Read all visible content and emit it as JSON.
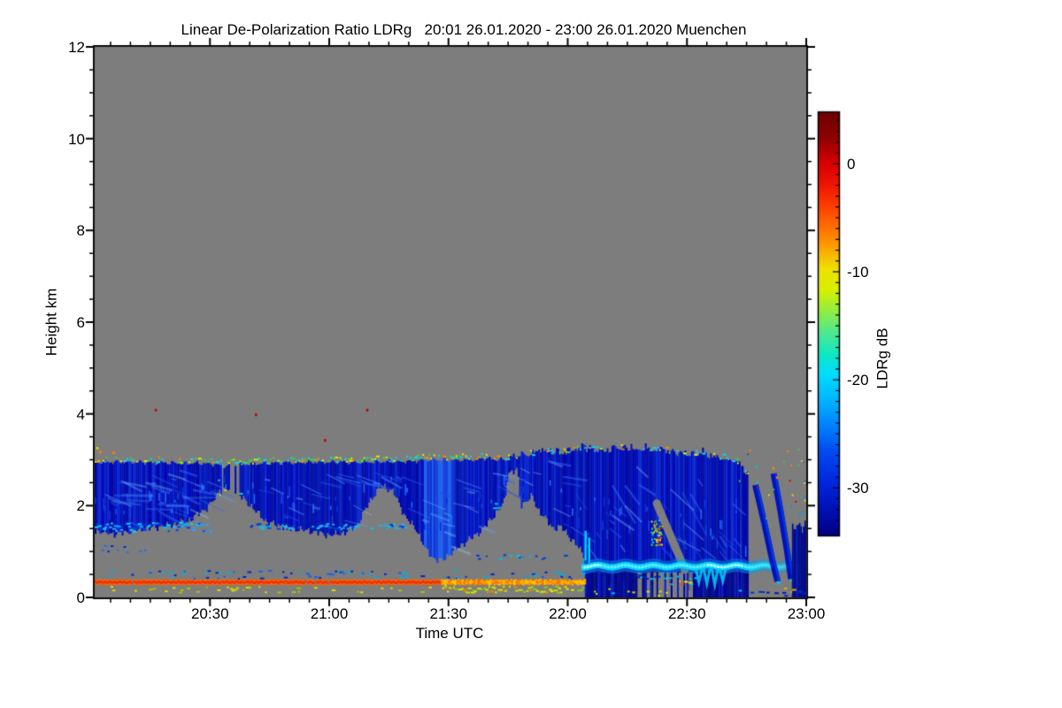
{
  "figure": {
    "title": "Linear De-Polarization Ratio LDRg   20:01 26.01.2020 - 23:00 26.01.2020 Muenchen"
  },
  "chart_data": {
    "type": "heatmap",
    "title": "Linear De-Polarization Ratio LDRg   20:01 26.01.2020 - 23:00 26.01.2020 Muenchen",
    "station": "Muenchen",
    "time_span": "20:01 26.01.2020 - 23:00 26.01.2020",
    "xlabel": "Time UTC",
    "ylabel": "Height km",
    "x_start_min": 1,
    "x_end_min": 180,
    "x_major_ticks": [
      {
        "t": 30,
        "label": "20:30"
      },
      {
        "t": 60,
        "label": "21:00"
      },
      {
        "t": 90,
        "label": "21:30"
      },
      {
        "t": 120,
        "label": "22:00"
      },
      {
        "t": 150,
        "label": "22:30"
      },
      {
        "t": 180,
        "label": "23:00"
      }
    ],
    "x_minor_step_min": 5,
    "ylim": [
      0,
      12
    ],
    "y_major_ticks": [
      0,
      2,
      4,
      6,
      8,
      10,
      12
    ],
    "y_minor_step_km": 0.5,
    "grid": false,
    "no_signal_color": "#7d7d7d",
    "colorbar": {
      "label": "LDRg dB",
      "tick_labels": [
        "0",
        "-10",
        "-20",
        "-30"
      ],
      "tick_values": [
        0,
        -10,
        -20,
        -30
      ],
      "value_range": [
        -34.4,
        4.75
      ],
      "minor_step_db": 1,
      "gradient": [
        [
          0,
          "#6f0000"
        ],
        [
          0.06,
          "#8f0000"
        ],
        [
          0.12,
          "#d80000"
        ],
        [
          0.17,
          "#f01400"
        ],
        [
          0.22,
          "#ff3c00"
        ],
        [
          0.27,
          "#ff6e00"
        ],
        [
          0.31,
          "#ff9600"
        ],
        [
          0.37,
          "#f0e000"
        ],
        [
          0.42,
          "#d8f000"
        ],
        [
          0.47,
          "#90ee40"
        ],
        [
          0.52,
          "#50e890"
        ],
        [
          0.57,
          "#10e8c0"
        ],
        [
          0.62,
          "#00dcff"
        ],
        [
          0.68,
          "#00b4ff"
        ],
        [
          0.74,
          "#0082ff"
        ],
        [
          0.8,
          "#004cf0"
        ],
        [
          0.87,
          "#0028e0"
        ],
        [
          0.93,
          "#0014bc"
        ],
        [
          1,
          "#000082"
        ]
      ]
    },
    "features": {
      "cloud_layer": {
        "note": "stratiform mixed-phase cloud deck, LDR ~ -30 dB (dark blue)",
        "top_points": [
          [
            1,
            2.95
          ],
          [
            10,
            2.95
          ],
          [
            20,
            2.93
          ],
          [
            28,
            2.92
          ],
          [
            31,
            2.9
          ],
          [
            33,
            2.86
          ],
          [
            38,
            2.9
          ],
          [
            50,
            2.94
          ],
          [
            60,
            2.95
          ],
          [
            70,
            2.95
          ],
          [
            80,
            2.97
          ],
          [
            85,
            3.0
          ],
          [
            90,
            3.0
          ],
          [
            95,
            3.0
          ],
          [
            99,
            3.03
          ],
          [
            102,
            3.0
          ],
          [
            105,
            3.0
          ],
          [
            107,
            3.03
          ],
          [
            110,
            3.08
          ],
          [
            113,
            3.14
          ],
          [
            118,
            3.12
          ],
          [
            122,
            3.16
          ],
          [
            126,
            3.18
          ],
          [
            130,
            3.17
          ],
          [
            134,
            3.22
          ],
          [
            138,
            3.15
          ],
          [
            142,
            3.18
          ],
          [
            146,
            3.14
          ],
          [
            150,
            3.1
          ],
          [
            154,
            3.06
          ],
          [
            158,
            3.02
          ],
          [
            161,
            2.97
          ],
          [
            163,
            2.9
          ],
          [
            165.3,
            2.6
          ]
        ],
        "base_points": [
          [
            1,
            1.45
          ],
          [
            6,
            1.38
          ],
          [
            12,
            1.48
          ],
          [
            18,
            1.55
          ],
          [
            24,
            1.65
          ],
          [
            29,
            1.95
          ],
          [
            31.5,
            2.2
          ],
          [
            34,
            2.35
          ],
          [
            37,
            2.25
          ],
          [
            40,
            2.0
          ],
          [
            44,
            1.65
          ],
          [
            50,
            1.5
          ],
          [
            55,
            1.45
          ],
          [
            60,
            1.35
          ],
          [
            64,
            1.42
          ],
          [
            67,
            1.6
          ],
          [
            70,
            2.1
          ],
          [
            73,
            2.45
          ],
          [
            76,
            2.3
          ],
          [
            79,
            1.75
          ],
          [
            82,
            1.45
          ],
          [
            84,
            1.05
          ],
          [
            86,
            0.85
          ],
          [
            88,
            0.8
          ],
          [
            91,
            1.0
          ],
          [
            94,
            1.2
          ],
          [
            98,
            1.45
          ],
          [
            101,
            1.75
          ],
          [
            104,
            2.1
          ],
          [
            104.8,
            2.72
          ],
          [
            107.2,
            2.78
          ],
          [
            108,
            2.0
          ],
          [
            110,
            2.15
          ],
          [
            111,
            2.2
          ],
          [
            112,
            1.95
          ],
          [
            114,
            1.75
          ],
          [
            116,
            1.5
          ],
          [
            118,
            1.55
          ],
          [
            120,
            1.35
          ],
          [
            122,
            1.15
          ],
          [
            124,
            0.9
          ],
          [
            124.3,
            0.62
          ],
          [
            165.3,
            0.62
          ]
        ],
        "patchy_gap_t": [
          31.5,
          39
        ],
        "deep_light_t": [
          83.5,
          91.5
        ],
        "end_t": 165.3,
        "palette": [
          "#0007a8",
          "#000cc0",
          "#0a28d8",
          "#0316b2"
        ],
        "light_palette": [
          "#1440e0",
          "#1e64f0",
          "#0a30d8"
        ],
        "wisp_colors": [
          "rgba(45,110,245,0.50)",
          "rgba(90,170,255,0.42)",
          "rgba(25,80,230,0.50)",
          "rgba(140,220,255,0.33)"
        ]
      },
      "precipitation": {
        "note": "snow/drizzle below cloud after 22:05 reaching ground",
        "t": [
          124.3,
          165.3
        ],
        "top_km": 0.8,
        "hole_t": [
          137,
          152
        ],
        "hole_below_km": 0.55,
        "palette": [
          "#0000a0",
          "#000692",
          "#0a1cc8",
          "#000f86"
        ]
      },
      "bright_band": {
        "note": "strong cyan layer ~0.7 km, LDR ~ -20 dB",
        "t": [
          123.5,
          180
        ],
        "center_km": 0.68,
        "fade_after_t": 165.3,
        "bright_t": [
          155,
          164
        ],
        "virga_dips": [
          [
            153,
            0.33
          ],
          [
            155,
            0.3
          ],
          [
            157,
            0.28
          ],
          [
            159,
            0.35
          ]
        ],
        "segment2": {
          "t": [
            175.6,
            179.8
          ],
          "km": 0.5
        }
      },
      "gray_wedge": {
        "from": [
          142.4,
          2.05
        ],
        "to": [
          149.5,
          0.6
        ]
      },
      "depol_blob": {
        "t": [
          140.8,
          143.6
        ],
        "km": [
          1.15,
          1.7
        ],
        "colors": [
          "#ffd000",
          "#ff8000",
          "#e00000",
          "#60e000",
          "#00d0e0"
        ]
      },
      "onset_streaks": [
        [
          124.5,
          0.8,
          1.45
        ],
        [
          125.4,
          0.75,
          1.3
        ]
      ],
      "slant_streaks": [
        [
          [
            167.2,
            2.45
          ],
          [
            169.5,
            1.6
          ],
          [
            171.5,
            0.8
          ],
          [
            172.8,
            0.35
          ]
        ],
        [
          [
            171.8,
            2.7
          ],
          [
            173.5,
            1.9
          ],
          [
            175.2,
            1.0
          ],
          [
            176.2,
            0.4
          ]
        ]
      ],
      "right_patch": {
        "t": [
          176.4,
          180
        ],
        "top_km": 1.55
      },
      "surface_line": {
        "note": "aerosol layer ~0.33 km, LDR ~ -3 dB (red-orange)",
        "t": [
          1,
          124.5
        ],
        "km": 0.33,
        "orange_from_t": 88,
        "core_color": "#f02800",
        "edge_color": "#ff6a00",
        "late_colors": [
          "#ff8c00",
          "#ffb000",
          "#ff7000",
          "#ffd000"
        ]
      },
      "speckle_rows": [
        {
          "t": [
            1,
            14
          ],
          "km": [
            1.0,
            1.15
          ],
          "density": 0.3,
          "colors": [
            "#0030d0",
            "#2070f0"
          ]
        },
        {
          "t": [
            1,
            30
          ],
          "km": [
            1.45,
            1.65
          ],
          "density": 0.85,
          "colors": [
            "#00d8e8",
            "#30a0ff",
            "#0040e0",
            "#00b0ff"
          ]
        },
        {
          "t": [
            40,
            80
          ],
          "km": [
            1.5,
            1.62
          ],
          "density": 0.55,
          "colors": [
            "#20b0f0",
            "#0040e0",
            "#00c8e8"
          ]
        },
        {
          "t": [
            1,
            124
          ],
          "km": [
            0.42,
            0.62
          ],
          "density": 0.22,
          "colors": [
            "#0028c0",
            "#00b0e0",
            "#2060e8"
          ]
        },
        {
          "t": [
            95,
            122
          ],
          "km": [
            0.85,
            0.95
          ],
          "density": 0.3,
          "colors": [
            "#00c0e8",
            "#0040d0"
          ]
        },
        {
          "t": [
            1,
            88
          ],
          "km": [
            0.12,
            0.26
          ],
          "density": 0.18,
          "colors": [
            "#d8d800",
            "#a0c800"
          ]
        },
        {
          "t": [
            88,
            124
          ],
          "km": [
            0.12,
            0.26
          ],
          "density": 0.7,
          "colors": [
            "#e0e000",
            "#80d020",
            "#e09000",
            "#c8e000"
          ]
        },
        {
          "t": [
            125,
            165
          ],
          "km": [
            0.05,
            0.2
          ],
          "density": 0.1,
          "colors": [
            "#d8d800",
            "#00c0e0"
          ]
        },
        {
          "t": [
            137,
            152
          ],
          "km": [
            0.42,
            0.5
          ],
          "density": 0.45,
          "colors": [
            "#0020b0",
            "#00c0e0"
          ]
        },
        {
          "t": [
            146,
            151
          ],
          "km": [
            0.3,
            0.38
          ],
          "density": 0.6,
          "colors": [
            "#ff4000",
            "#ffa000",
            "#00d0e0",
            "#e8e800"
          ]
        },
        {
          "t": [
            32,
            39
          ],
          "km": [
            2.1,
            2.7
          ],
          "density": 0.25,
          "colors": [
            "#00d0d0",
            "#40c840",
            "#d8d800"
          ]
        },
        {
          "t": [
            100,
            104
          ],
          "km": [
            1.95,
            2.1
          ],
          "density": 0.3,
          "colors": [
            "#00c8e0"
          ]
        },
        {
          "t": [
            166,
            180
          ],
          "km": [
            0.05,
            0.15
          ],
          "density": 0.45,
          "colors": [
            "#0018b0",
            "#0030d8"
          ]
        },
        {
          "t": [
            172,
            177
          ],
          "km": [
            0.1,
            0.22
          ],
          "density": 0.3,
          "colors": [
            "#e0b000",
            "#e0e000"
          ]
        },
        {
          "t": [
            176,
            180
          ],
          "km": [
            1.8,
            2.3
          ],
          "density": 0.25,
          "colors": [
            "#0030d8",
            "#00a0e0"
          ]
        }
      ],
      "cloud_top_speckles": {
        "dense_t": [
          25,
          100
        ],
        "colors": [
          "#00e0e0",
          "#40d040",
          "#e6e600",
          "#ff8c00",
          "#41b4ff"
        ],
        "offset_km": [
          0.02,
          0.14
        ]
      },
      "scatter_region": {
        "t": [
          162,
          180
        ],
        "km": [
          1.4,
          3.25
        ],
        "count": 30,
        "colors": [
          "#00d0e0",
          "#40c840",
          "#e0e000",
          "#ff8000",
          "#d00000",
          "#2060f0",
          "#00b4ff"
        ]
      },
      "isolated_dots": [
        [
          16.1,
          4.11,
          "#c80000"
        ],
        [
          41.3,
          4.01,
          "#c80000"
        ],
        [
          69.3,
          4.11,
          "#c80000"
        ],
        [
          58.7,
          3.45,
          "#c80000"
        ],
        [
          2.1,
          3.2,
          "#ff8000"
        ],
        [
          5.5,
          3.18,
          "#ff8000"
        ],
        [
          1.4,
          3.28,
          "#d8d800"
        ],
        [
          171.5,
          2.84,
          "#ff8000"
        ],
        [
          172.4,
          2.64,
          "#ff7000"
        ]
      ]
    }
  }
}
